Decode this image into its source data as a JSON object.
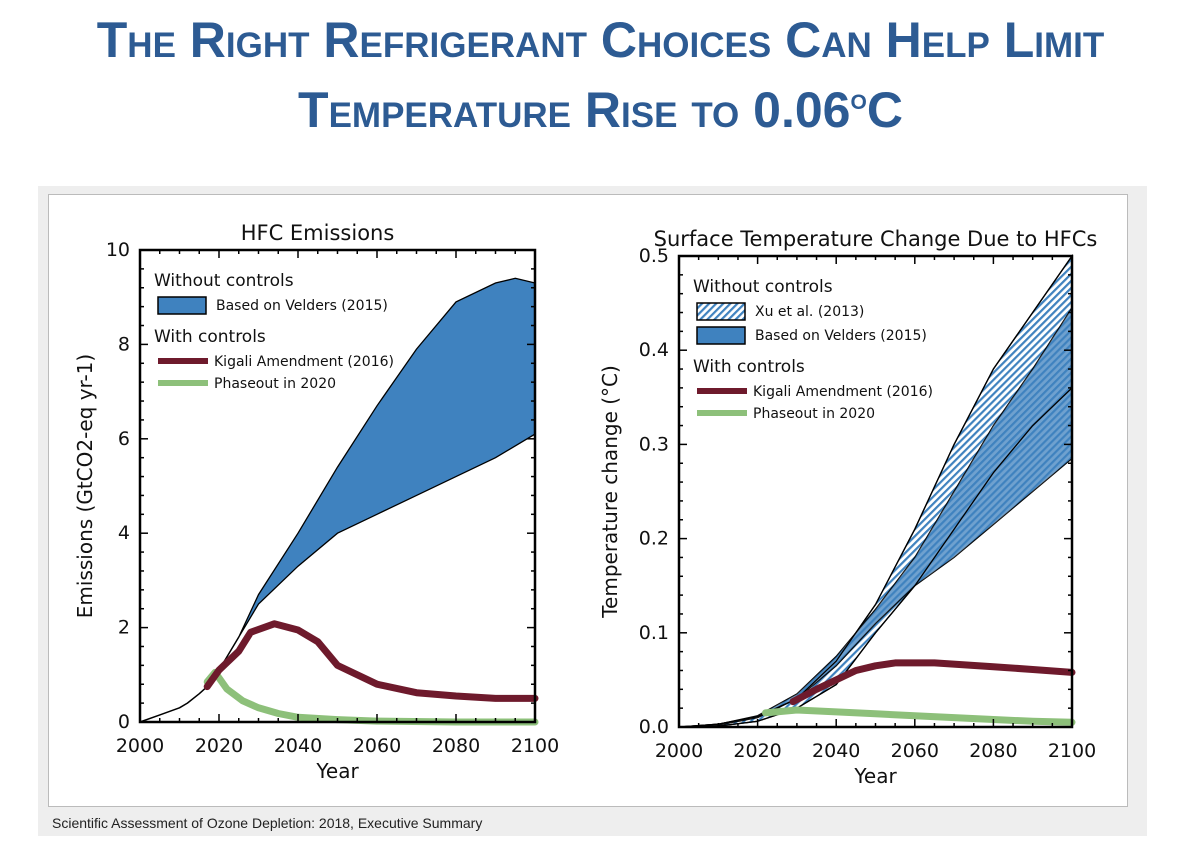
{
  "title_line1": "The Right Refrigerant Choices Can Help Limit",
  "title_line2_main": "Temperature Rise to 0.06",
  "title_line2_sup": "o",
  "title_line2_end": "C",
  "caption": "Scientific Assessment of Ozone Depletion: 2018, Executive Summary",
  "colors": {
    "title": "#2d5b93",
    "band": "#3f82bf",
    "kigali": "#6e1a2c",
    "phaseout": "#8dc07a"
  },
  "chart_data": [
    {
      "type": "area",
      "title": "HFC Emissions",
      "xlabel": "Year",
      "ylabel": "Emissions (GtCO2-eq yr-1)",
      "xlim": [
        2000,
        2100
      ],
      "ylim": [
        0,
        10
      ],
      "xticks": [
        "2000",
        "2020",
        "2040",
        "2060",
        "2080",
        "2100"
      ],
      "yticks": [
        "0",
        "2",
        "4",
        "6",
        "8",
        "10"
      ],
      "legend": {
        "placement": "top-left",
        "group1": "Without controls",
        "group2": "With controls",
        "items": [
          "Based on Velders (2015)",
          "Kigali Amendment (2016)",
          "Phaseout in 2020"
        ]
      },
      "history": {
        "x": [
          2000,
          2005,
          2010,
          2012,
          2015,
          2017,
          2020,
          2025
        ],
        "y": [
          0,
          0.15,
          0.3,
          0.4,
          0.6,
          0.75,
          1.1,
          1.8
        ]
      },
      "velders_upper": {
        "x": [
          2025,
          2030,
          2040,
          2050,
          2060,
          2070,
          2080,
          2090,
          2095,
          2100
        ],
        "y": [
          1.8,
          2.7,
          4.0,
          5.4,
          6.7,
          7.9,
          8.9,
          9.3,
          9.4,
          9.3
        ]
      },
      "velders_lower": {
        "x": [
          2025,
          2030,
          2040,
          2050,
          2060,
          2070,
          2080,
          2090,
          2100
        ],
        "y": [
          1.8,
          2.5,
          3.3,
          4.0,
          4.4,
          4.8,
          5.2,
          5.6,
          6.1
        ]
      },
      "kigali": {
        "x": [
          2017,
          2020,
          2025,
          2028,
          2034,
          2040,
          2045,
          2050,
          2060,
          2070,
          2080,
          2090,
          2100
        ],
        "y": [
          0.75,
          1.1,
          1.5,
          1.9,
          2.08,
          1.95,
          1.7,
          1.2,
          0.8,
          0.62,
          0.55,
          0.5,
          0.5
        ]
      },
      "phaseout": {
        "x": [
          2017,
          2019,
          2022,
          2026,
          2030,
          2035,
          2040,
          2050,
          2060,
          2080,
          2100
        ],
        "y": [
          0.85,
          1.05,
          0.7,
          0.45,
          0.3,
          0.18,
          0.1,
          0.05,
          0.02,
          0.0,
          0.0
        ]
      }
    },
    {
      "type": "area",
      "title": "Surface Temperature Change Due to HFCs",
      "xlabel": "Year",
      "ylabel": "Temperature change (°C)",
      "xlim": [
        2000,
        2100
      ],
      "ylim": [
        0,
        0.5
      ],
      "xticks": [
        "2000",
        "2020",
        "2040",
        "2060",
        "2080",
        "2100"
      ],
      "yticks": [
        "0.0",
        "0.1",
        "0.2",
        "0.3",
        "0.4",
        "0.5"
      ],
      "legend": {
        "placement": "top-left",
        "group1": "Without controls",
        "group2": "With controls",
        "items": [
          "Xu et al. (2013)",
          "Based on Velders (2015)",
          "Kigali Amendment (2016)",
          "Phaseout in 2020"
        ]
      },
      "xu_upper": {
        "x": [
          2000,
          2010,
          2020,
          2030,
          2040,
          2050,
          2060,
          2070,
          2080,
          2090,
          2100
        ],
        "y": [
          0,
          0.003,
          0.011,
          0.03,
          0.07,
          0.13,
          0.21,
          0.3,
          0.38,
          0.44,
          0.5
        ]
      },
      "xu_lower": {
        "x": [
          2000,
          2010,
          2020,
          2030,
          2040,
          2050,
          2060,
          2070,
          2080,
          2090,
          2100
        ],
        "y": [
          0,
          0.001,
          0.006,
          0.02,
          0.045,
          0.1,
          0.15,
          0.21,
          0.27,
          0.32,
          0.36
        ]
      },
      "velders_upper": {
        "x": [
          2000,
          2010,
          2020,
          2030,
          2040,
          2050,
          2060,
          2070,
          2080,
          2090,
          2100
        ],
        "y": [
          0,
          0.003,
          0.012,
          0.035,
          0.075,
          0.125,
          0.18,
          0.25,
          0.32,
          0.38,
          0.445
        ]
      },
      "velders_lower": {
        "x": [
          2000,
          2010,
          2020,
          2030,
          2040,
          2050,
          2060,
          2070,
          2080,
          2090,
          2100
        ],
        "y": [
          0,
          0.002,
          0.01,
          0.03,
          0.065,
          0.11,
          0.15,
          0.18,
          0.215,
          0.25,
          0.285
        ]
      },
      "kigali": {
        "x": [
          2029,
          2035,
          2040,
          2045,
          2050,
          2055,
          2065,
          2080,
          2090,
          2100
        ],
        "y": [
          0.027,
          0.04,
          0.05,
          0.06,
          0.065,
          0.068,
          0.068,
          0.064,
          0.061,
          0.058
        ]
      },
      "phaseout": {
        "x": [
          2022,
          2030,
          2040,
          2050,
          2060,
          2070,
          2080,
          2090,
          2100
        ],
        "y": [
          0.015,
          0.018,
          0.016,
          0.014,
          0.012,
          0.01,
          0.008,
          0.006,
          0.005
        ]
      }
    }
  ]
}
